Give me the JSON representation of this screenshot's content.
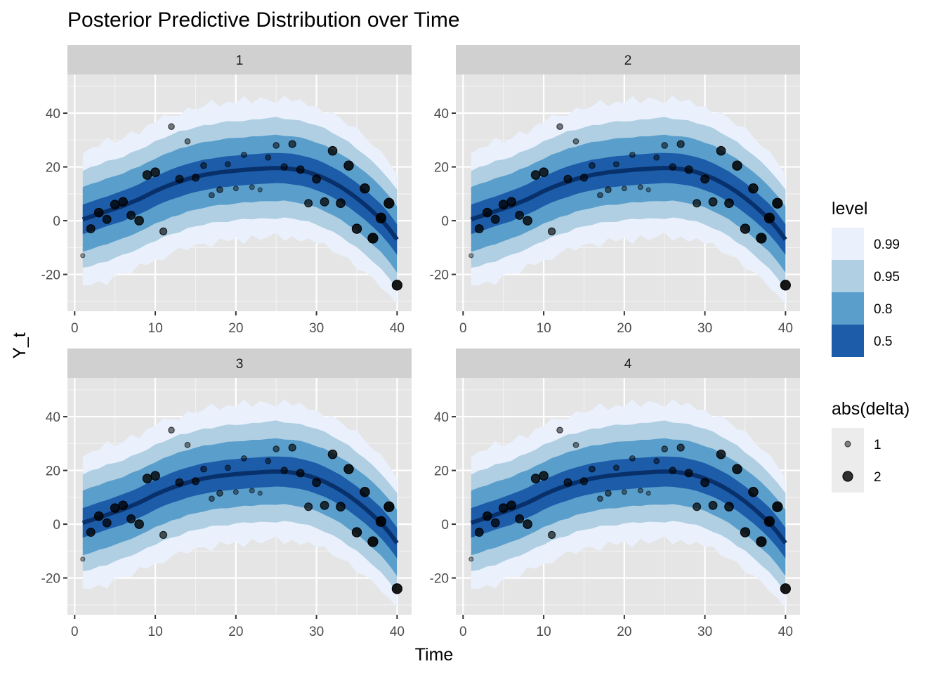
{
  "chart_data": {
    "type": "area",
    "title": "Posterior Predictive Distribution over Time",
    "xlabel": "Time",
    "ylabel": "Y_t",
    "xlim": [
      -0.9,
      41.8
    ],
    "ylim": [
      -33.7,
      54.4
    ],
    "x_ticks": [
      0,
      10,
      20,
      30,
      40
    ],
    "y_ticks": [
      -20,
      0,
      20,
      40
    ],
    "grid": true,
    "facets": [
      "1",
      "2",
      "3",
      "4"
    ],
    "x": [
      1,
      2,
      3,
      4,
      5,
      6,
      7,
      8,
      9,
      10,
      11,
      12,
      13,
      14,
      15,
      16,
      17,
      18,
      19,
      20,
      21,
      22,
      23,
      24,
      25,
      26,
      27,
      28,
      29,
      30,
      31,
      32,
      33,
      34,
      35,
      36,
      37,
      38,
      39,
      40
    ],
    "median": [
      0.5,
      1.5,
      2.5,
      3.5,
      4.5,
      5.5,
      6.8,
      8,
      9.5,
      11,
      12.3,
      13.5,
      14.5,
      15.5,
      16.3,
      17,
      17.5,
      18,
      18.3,
      18.6,
      18.9,
      19.1,
      19.3,
      19.5,
      19.6,
      19.5,
      19.2,
      18.7,
      18,
      17,
      15.8,
      14.3,
      12.6,
      10.6,
      8.4,
      6,
      3.3,
      0.5,
      -3,
      -7
    ],
    "band_widths": {
      "0.5": [
        5.5,
        5.5,
        5.6,
        5.5,
        5.6,
        5.7,
        5.5,
        5.6,
        5.7,
        5.6,
        5.5,
        5.6,
        5.7,
        5.6,
        5.6,
        5.7,
        5.6,
        5.6,
        5.7,
        5.6,
        5.7,
        5.6,
        5.6,
        5.7,
        5.6,
        5.6,
        5.7,
        5.6,
        5.6,
        5.7,
        5.6,
        5.6,
        5.7,
        5.6,
        5.7,
        5.6,
        5.6,
        5.7,
        5.7,
        5.7
      ],
      "0.8": [
        12.0,
        12.2,
        12.0,
        12.3,
        12.1,
        12.0,
        12.3,
        12.1,
        12.2,
        12.0,
        12.3,
        12.1,
        12.4,
        12.0,
        12.2,
        12.3,
        12.0,
        12.1,
        12.4,
        12.2,
        12.0,
        12.3,
        12.1,
        12.2,
        12.4,
        12.0,
        12.2,
        12.3,
        12.1,
        12.0,
        12.3,
        12.2,
        12.1,
        12.4,
        12.0,
        12.2,
        12.3,
        12.1,
        12.2,
        12.3
      ],
      "0.95": [
        18.0,
        18.5,
        18.2,
        18.8,
        18.3,
        18.1,
        18.6,
        18.4,
        18.2,
        18.7,
        18.3,
        18.5,
        18.9,
        18.2,
        18.4,
        18.6,
        18.1,
        18.5,
        18.8,
        18.3,
        18.2,
        18.6,
        18.4,
        18.7,
        19.0,
        18.3,
        18.4,
        18.6,
        18.2,
        18.5,
        18.7,
        18.3,
        18.4,
        18.8,
        18.2,
        18.5,
        18.6,
        18.3,
        18.4,
        18.6
      ],
      "0.99": [
        24.5,
        25.5,
        25.0,
        27.5,
        24.5,
        25.0,
        26.5,
        24.0,
        26.0,
        25.5,
        27.0,
        25.5,
        24.5,
        26.5,
        25.0,
        25.5,
        27.5,
        24.5,
        26.0,
        25.0,
        27.5,
        24.5,
        26.5,
        25.5,
        24.0,
        27.0,
        25.0,
        26.5,
        24.5,
        25.5,
        24.0,
        26.0,
        25.5,
        24.5,
        26.5,
        25.0,
        24.5,
        25.5,
        24.5,
        24.0
      ]
    },
    "observed": [
      -13,
      -3,
      3,
      0.5,
      6,
      7,
      2,
      0,
      17,
      18,
      -4,
      35,
      15.5,
      29.5,
      16,
      20.5,
      9.5,
      11.5,
      21,
      12,
      24.5,
      12.5,
      11.5,
      23.5,
      28,
      20,
      28.5,
      19,
      6.5,
      15.5,
      7,
      26,
      6.5,
      20.5,
      -3,
      12,
      -6.5,
      1,
      6.5,
      -24
    ],
    "abs_delta": [
      1.0,
      1.7,
      1.8,
      1.7,
      1.8,
      1.8,
      1.7,
      1.8,
      1.8,
      1.8,
      1.5,
      1.3,
      1.6,
      1.2,
      1.5,
      1.3,
      1.2,
      1.3,
      1.2,
      1.1,
      1.2,
      1.1,
      1.0,
      1.2,
      1.3,
      1.4,
      1.5,
      1.6,
      1.6,
      1.7,
      1.7,
      1.8,
      1.8,
      1.9,
      1.9,
      1.9,
      2.0,
      2.0,
      2.0,
      2.0
    ],
    "legends": {
      "level": {
        "title": "level",
        "entries": [
          {
            "label": "0.99",
            "color": "#eaf1fd"
          },
          {
            "label": "0.95",
            "color": "#b0cfe2"
          },
          {
            "label": "0.8",
            "color": "#5a9ecc"
          },
          {
            "label": "0.5",
            "color": "#1c5ca8"
          }
        ]
      },
      "abs_delta": {
        "title": "abs(delta)",
        "entries": [
          {
            "label": "1"
          },
          {
            "label": "2"
          }
        ]
      }
    },
    "colors": {
      "panel_bg": "#e5e5e5",
      "strip_bg": "#d0d0d0",
      "median_line": "#08306b",
      "point": "#000000"
    }
  }
}
